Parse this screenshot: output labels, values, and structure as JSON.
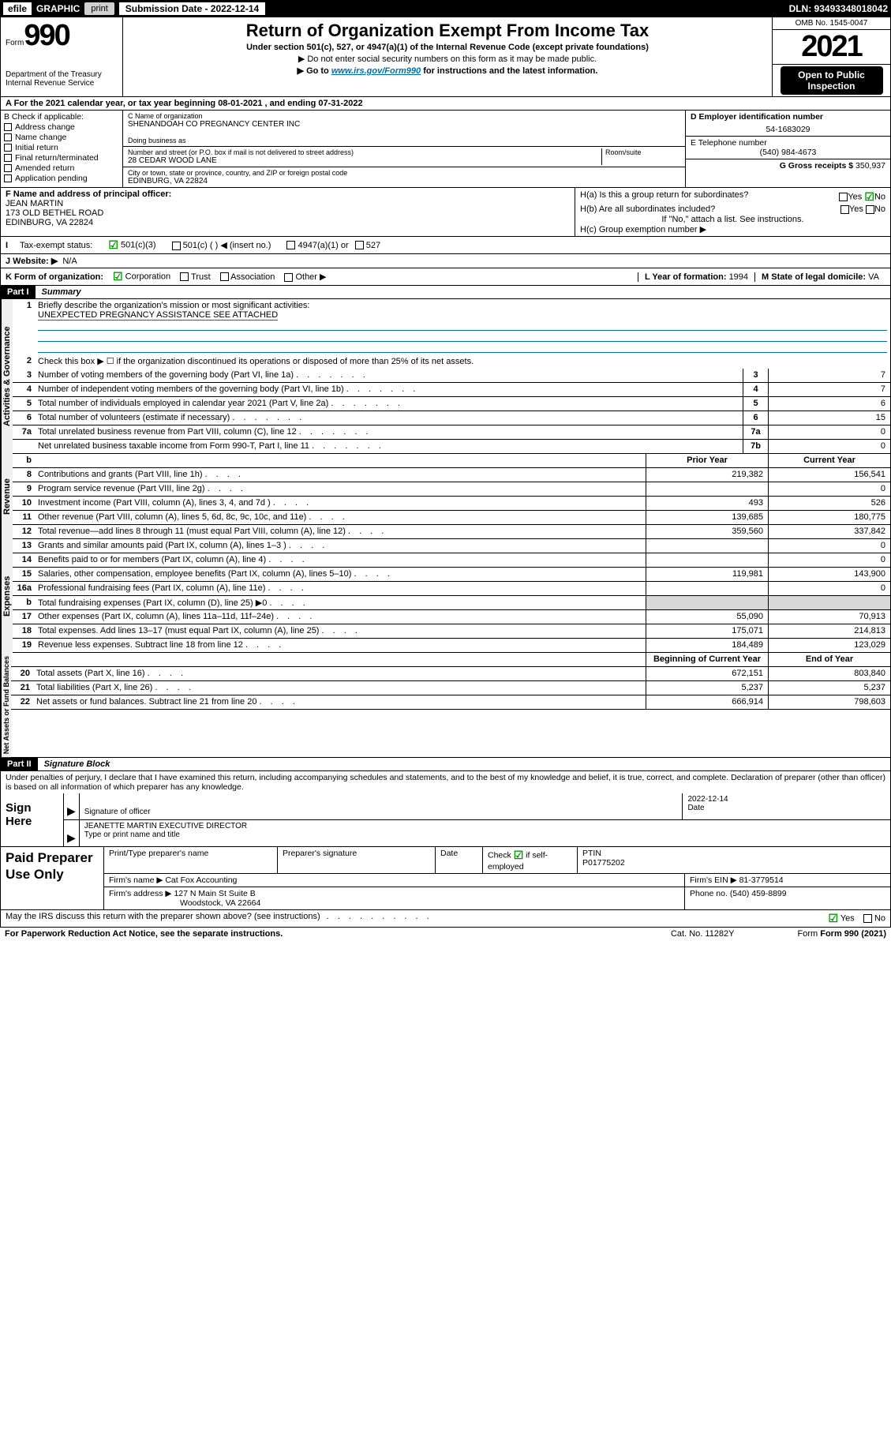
{
  "colors": {
    "link": "#0070aa",
    "check": "#009900",
    "grey": "#d8d8d8",
    "black": "#000000"
  },
  "top": {
    "efile": "efile",
    "graphic": "GRAPHIC",
    "print": "print",
    "sub_date_label": "Submission Date - 2022-12-14",
    "dln": "DLN: 93493348018042"
  },
  "header": {
    "form_prefix": "Form",
    "form_num": "990",
    "dept": "Department of the Treasury",
    "irs": "Internal Revenue Service",
    "title": "Return of Organization Exempt From Income Tax",
    "sub1": "Under section 501(c), 527, or 4947(a)(1) of the Internal Revenue Code (except private foundations)",
    "sub2": "▶ Do not enter social security numbers on this form as it may be made public.",
    "sub3_pre": "▶ Go to ",
    "sub3_link": "www.irs.gov/Form990",
    "sub3_post": " for instructions and the latest information.",
    "omb": "OMB No. 1545-0047",
    "year": "2021",
    "open1": "Open to Public",
    "open2": "Inspection"
  },
  "row_a": "A For the 2021 calendar year, or tax year beginning 08-01-2021   , and ending 07-31-2022",
  "col_b": {
    "title": "B Check if applicable:",
    "items": [
      "Address change",
      "Name change",
      "Initial return",
      "Final return/terminated",
      "Amended return",
      "Application pending"
    ]
  },
  "col_c": {
    "lbl_name": "C Name of organization",
    "name": "SHENANDOAH CO PREGNANCY CENTER INC",
    "dba_lbl": "Doing business as",
    "addr_lbl": "Number and street (or P.O. box if mail is not delivered to street address)",
    "room_lbl": "Room/suite",
    "addr": "28 CEDAR WOOD LANE",
    "city_lbl": "City or town, state or province, country, and ZIP or foreign postal code",
    "city": "EDINBURG, VA  22824"
  },
  "col_d": {
    "ein_lbl": "D Employer identification number",
    "ein": "54-1683029",
    "tel_lbl": "E Telephone number",
    "tel": "(540) 984-4673",
    "gross_lbl": "G Gross receipts $",
    "gross": "350,937"
  },
  "row_f": {
    "lbl": "F Name and address of principal officer:",
    "name": "JEAN MARTIN",
    "addr1": "173 OLD BETHEL ROAD",
    "addr2": "EDINBURG, VA  22824"
  },
  "col_h": {
    "ha": "H(a)  Is this a group return for subordinates?",
    "hb": "H(b)  Are all subordinates included?",
    "yes": "Yes",
    "no": "No",
    "attach": "If \"No,\" attach a list. See instructions.",
    "hc": "H(c)  Group exemption number ▶"
  },
  "row_i": {
    "lbl": "Tax-exempt status:",
    "opt1": "501(c)(3)",
    "opt2": "501(c) (   ) ◀ (insert no.)",
    "opt3": "4947(a)(1) or",
    "opt4": "527"
  },
  "row_j": {
    "lbl": "J   Website: ▶",
    "val": "N/A"
  },
  "row_k": {
    "lbl": "K Form of organization:",
    "opts": [
      "Corporation",
      "Trust",
      "Association",
      "Other ▶"
    ],
    "l_lbl": "L Year of formation:",
    "l_val": "1994",
    "m_lbl": "M State of legal domicile:",
    "m_val": "VA"
  },
  "part1": {
    "hdr": "Part I",
    "title": "Summary"
  },
  "sections": {
    "gov": "Activities & Governance",
    "rev": "Revenue",
    "exp": "Expenses",
    "net": "Net Assets or Fund Balances"
  },
  "summary": {
    "line1_lbl": "Briefly describe the organization's mission or most significant activities:",
    "line1_val": "UNEXPECTED PREGNANCY ASSISTANCE SEE ATTACHED",
    "line2": "Check this box ▶ ☐  if the organization discontinued its operations or disposed of more than 25% of its net assets.",
    "rows_top": [
      {
        "n": "3",
        "d": "Number of voting members of the governing body (Part VI, line 1a)",
        "b": "3",
        "v": "7"
      },
      {
        "n": "4",
        "d": "Number of independent voting members of the governing body (Part VI, line 1b)",
        "b": "4",
        "v": "7"
      },
      {
        "n": "5",
        "d": "Total number of individuals employed in calendar year 2021 (Part V, line 2a)",
        "b": "5",
        "v": "6"
      },
      {
        "n": "6",
        "d": "Total number of volunteers (estimate if necessary)",
        "b": "6",
        "v": "15"
      },
      {
        "n": "7a",
        "d": "Total unrelated business revenue from Part VIII, column (C), line 12",
        "b": "7a",
        "v": "0"
      },
      {
        "n": "",
        "d": "Net unrelated business taxable income from Form 990-T, Part I, line 11",
        "b": "7b",
        "v": "0"
      }
    ],
    "col_hdr": {
      "b": "b",
      "py": "Prior Year",
      "cy": "Current Year"
    },
    "rows_rev": [
      {
        "n": "8",
        "d": "Contributions and grants (Part VIII, line 1h)",
        "py": "219,382",
        "cy": "156,541"
      },
      {
        "n": "9",
        "d": "Program service revenue (Part VIII, line 2g)",
        "py": "",
        "cy": "0"
      },
      {
        "n": "10",
        "d": "Investment income (Part VIII, column (A), lines 3, 4, and 7d )",
        "py": "493",
        "cy": "526"
      },
      {
        "n": "11",
        "d": "Other revenue (Part VIII, column (A), lines 5, 6d, 8c, 9c, 10c, and 11e)",
        "py": "139,685",
        "cy": "180,775"
      },
      {
        "n": "12",
        "d": "Total revenue—add lines 8 through 11 (must equal Part VIII, column (A), line 12)",
        "py": "359,560",
        "cy": "337,842"
      }
    ],
    "rows_exp": [
      {
        "n": "13",
        "d": "Grants and similar amounts paid (Part IX, column (A), lines 1–3 )",
        "py": "",
        "cy": "0"
      },
      {
        "n": "14",
        "d": "Benefits paid to or for members (Part IX, column (A), line 4)",
        "py": "",
        "cy": "0"
      },
      {
        "n": "15",
        "d": "Salaries, other compensation, employee benefits (Part IX, column (A), lines 5–10)",
        "py": "119,981",
        "cy": "143,900"
      },
      {
        "n": "16a",
        "d": "Professional fundraising fees (Part IX, column (A), line 11e)",
        "py": "",
        "cy": "0"
      },
      {
        "n": "b",
        "d": "Total fundraising expenses (Part IX, column (D), line 25) ▶0",
        "py": "grey",
        "cy": "grey"
      },
      {
        "n": "17",
        "d": "Other expenses (Part IX, column (A), lines 11a–11d, 11f–24e)",
        "py": "55,090",
        "cy": "70,913"
      },
      {
        "n": "18",
        "d": "Total expenses. Add lines 13–17 (must equal Part IX, column (A), line 25)",
        "py": "175,071",
        "cy": "214,813"
      },
      {
        "n": "19",
        "d": "Revenue less expenses. Subtract line 18 from line 12",
        "py": "184,489",
        "cy": "123,029"
      }
    ],
    "net_hdr": {
      "py": "Beginning of Current Year",
      "cy": "End of Year"
    },
    "rows_net": [
      {
        "n": "20",
        "d": "Total assets (Part X, line 16)",
        "py": "672,151",
        "cy": "803,840"
      },
      {
        "n": "21",
        "d": "Total liabilities (Part X, line 26)",
        "py": "5,237",
        "cy": "5,237"
      },
      {
        "n": "22",
        "d": "Net assets or fund balances. Subtract line 21 from line 20",
        "py": "666,914",
        "cy": "798,603"
      }
    ]
  },
  "part2": {
    "hdr": "Part II",
    "title": "Signature Block"
  },
  "sig": {
    "pen": "Under penalties of perjury, I declare that I have examined this return, including accompanying schedules and statements, and to the best of my knowledge and belief, it is true, correct, and complete. Declaration of preparer (other than officer) is based on all information of which preparer has any knowledge.",
    "sign_here": "Sign Here",
    "sig_of": "Signature of officer",
    "date": "Date",
    "date_val": "2022-12-14",
    "name": "JEANETTE MARTIN  EXECUTIVE DIRECTOR",
    "type_name": "Type or print name and title"
  },
  "paid": {
    "title": "Paid Preparer Use Only",
    "h1": "Print/Type preparer's name",
    "h2": "Preparer's signature",
    "h3": "Date",
    "h4_a": "Check",
    "h4_b": "if self-employed",
    "h5": "PTIN",
    "ptin": "P01775202",
    "firm_name_lbl": "Firm's name    ▶",
    "firm_name": "Cat Fox Accounting",
    "firm_ein_lbl": "Firm's EIN ▶",
    "firm_ein": "81-3779514",
    "firm_addr_lbl": "Firm's address ▶",
    "firm_addr1": "127 N Main St Suite B",
    "firm_addr2": "Woodstock, VA  22664",
    "phone_lbl": "Phone no.",
    "phone": "(540) 459-8899"
  },
  "footer": {
    "may": "May the IRS discuss this return with the preparer shown above? (see instructions)",
    "yes": "Yes",
    "no": "No",
    "pra": "For Paperwork Reduction Act Notice, see the separate instructions.",
    "cat": "Cat. No. 11282Y",
    "form": "Form 990 (2021)"
  }
}
